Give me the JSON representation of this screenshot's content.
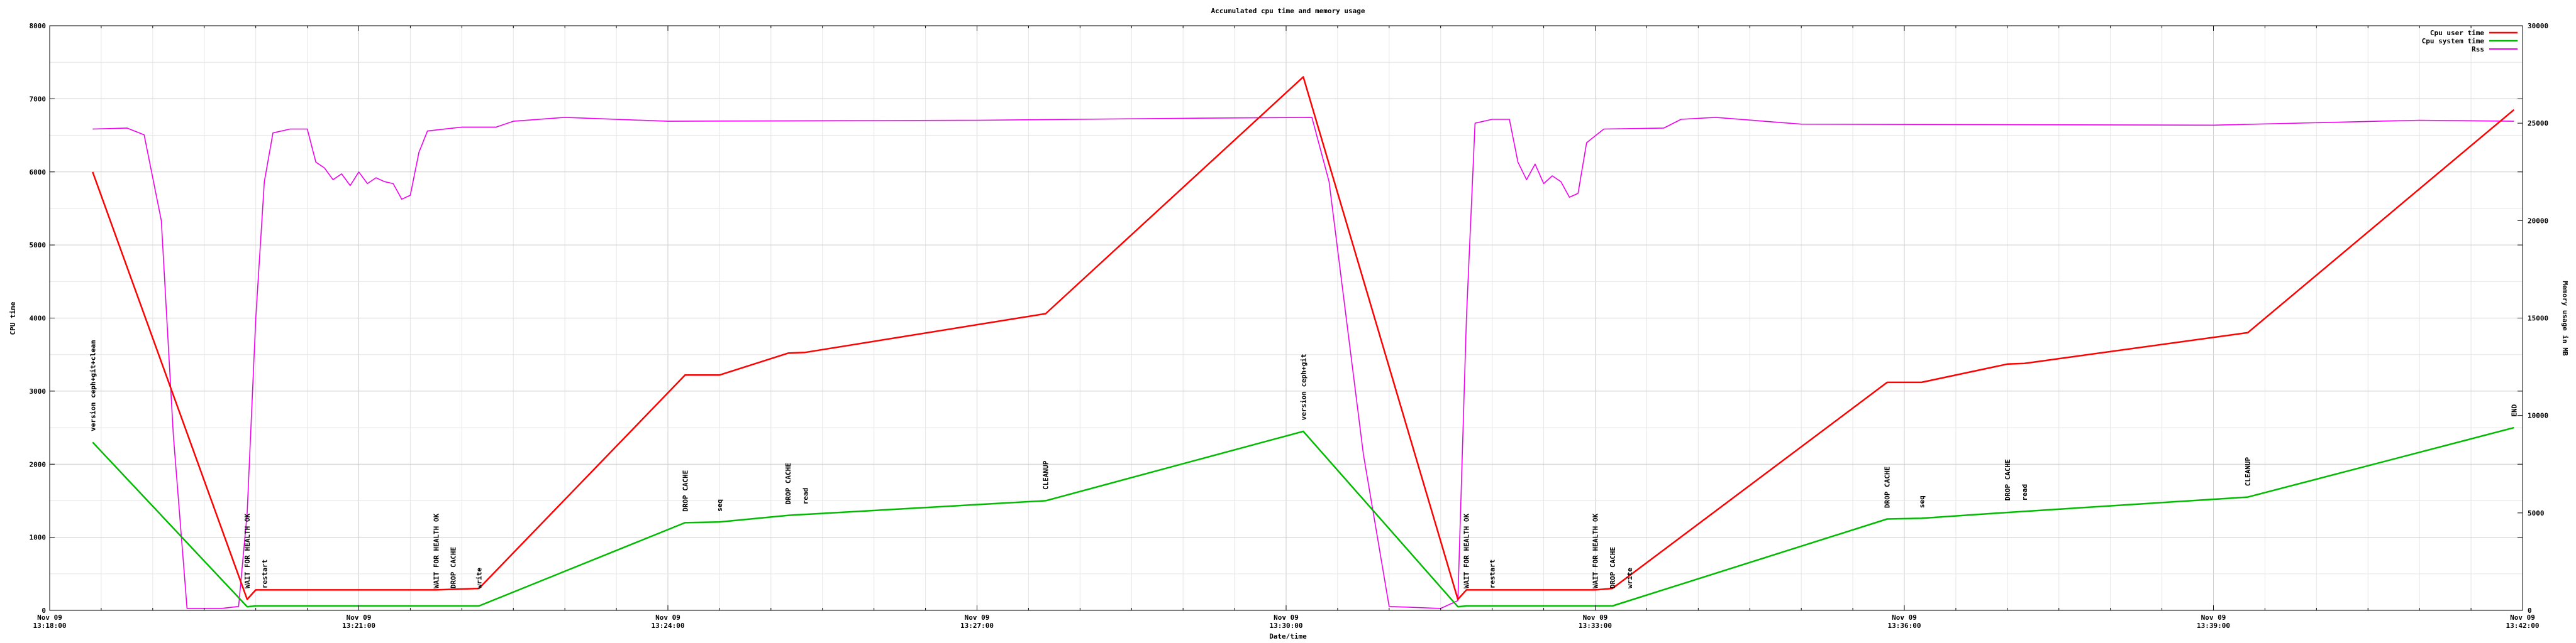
{
  "chart_data": {
    "type": "line",
    "title": "Accumulated cpu time and memory usage",
    "xlabel": "Date/time",
    "ylabel": "CPU time",
    "y2label": "Memory usage in MB",
    "xlim": [
      "13:18:00",
      "13:42:00"
    ],
    "ylim": [
      0,
      8000
    ],
    "y2lim": [
      0,
      30000
    ],
    "grid": true,
    "legend_position": "top-right",
    "x_ticks": [
      {
        "t": "13:18:00",
        "l1": "Nov 09",
        "l2": "13:18:00"
      },
      {
        "t": "13:21:00",
        "l1": "Nov 09",
        "l2": "13:21:00"
      },
      {
        "t": "13:24:00",
        "l1": "Nov 09",
        "l2": "13:24:00"
      },
      {
        "t": "13:27:00",
        "l1": "Nov 09",
        "l2": "13:27:00"
      },
      {
        "t": "13:30:00",
        "l1": "Nov 09",
        "l2": "13:30:00"
      },
      {
        "t": "13:33:00",
        "l1": "Nov 09",
        "l2": "13:33:00"
      },
      {
        "t": "13:36:00",
        "l1": "Nov 09",
        "l2": "13:36:00"
      },
      {
        "t": "13:39:00",
        "l1": "Nov 09",
        "l2": "13:39:00"
      },
      {
        "t": "13:42:00",
        "l1": "Nov 09",
        "l2": "13:42:00"
      }
    ],
    "y_ticks": [
      "0",
      "1000",
      "2000",
      "3000",
      "4000",
      "5000",
      "6000",
      "7000",
      "8000"
    ],
    "y2_ticks": [
      "0",
      "5000",
      "10000",
      "15000",
      "20000",
      "25000",
      "30000"
    ],
    "series": [
      {
        "name": "Cpu user time",
        "color": "#ff0000",
        "axis": "y",
        "points": [
          [
            "13:18:25",
            6000
          ],
          [
            "13:19:55",
            150
          ],
          [
            "13:20:00",
            280
          ],
          [
            "13:20:30",
            280
          ],
          [
            "13:21:45",
            280
          ],
          [
            "13:22:10",
            300
          ],
          [
            "13:24:10",
            3220
          ],
          [
            "13:24:30",
            3220
          ],
          [
            "13:25:10",
            3520
          ],
          [
            "13:25:20",
            3530
          ],
          [
            "13:27:40",
            4060
          ],
          [
            "13:30:10",
            7300
          ],
          [
            "13:31:40",
            150
          ],
          [
            "13:31:45",
            280
          ],
          [
            "13:33:00",
            280
          ],
          [
            "13:33:10",
            300
          ],
          [
            "13:35:50",
            3120
          ],
          [
            "13:36:10",
            3120
          ],
          [
            "13:37:00",
            3370
          ],
          [
            "13:37:10",
            3380
          ],
          [
            "13:39:20",
            3800
          ],
          [
            "13:41:55",
            6850
          ]
        ]
      },
      {
        "name": "Cpu system time",
        "color": "#00bb00",
        "axis": "y",
        "points": [
          [
            "13:18:25",
            2300
          ],
          [
            "13:19:55",
            50
          ],
          [
            "13:20:00",
            60
          ],
          [
            "13:22:10",
            60
          ],
          [
            "13:24:10",
            1200
          ],
          [
            "13:24:30",
            1210
          ],
          [
            "13:25:10",
            1300
          ],
          [
            "13:27:40",
            1500
          ],
          [
            "13:30:10",
            2450
          ],
          [
            "13:31:40",
            50
          ],
          [
            "13:31:45",
            60
          ],
          [
            "13:33:10",
            60
          ],
          [
            "13:35:50",
            1250
          ],
          [
            "13:36:10",
            1260
          ],
          [
            "13:37:00",
            1340
          ],
          [
            "13:39:20",
            1550
          ],
          [
            "13:41:55",
            2500
          ]
        ]
      },
      {
        "name": "Rss",
        "color": "#ee00ee",
        "axis": "y2",
        "points": [
          [
            "13:18:25",
            24700
          ],
          [
            "13:18:45",
            24750
          ],
          [
            "13:18:55",
            24400
          ],
          [
            "13:19:05",
            20000
          ],
          [
            "13:19:12",
            9000
          ],
          [
            "13:19:20",
            100
          ],
          [
            "13:19:40",
            100
          ],
          [
            "13:19:50",
            200
          ],
          [
            "13:19:55",
            5000
          ],
          [
            "13:20:00",
            15000
          ],
          [
            "13:20:05",
            22000
          ],
          [
            "13:20:10",
            24500
          ],
          [
            "13:20:20",
            24700
          ],
          [
            "13:20:30",
            24700
          ],
          [
            "13:20:35",
            23000
          ],
          [
            "13:20:40",
            22700
          ],
          [
            "13:20:45",
            22100
          ],
          [
            "13:20:50",
            22400
          ],
          [
            "13:20:55",
            21800
          ],
          [
            "13:21:00",
            22500
          ],
          [
            "13:21:05",
            21900
          ],
          [
            "13:21:10",
            22200
          ],
          [
            "13:21:15",
            22000
          ],
          [
            "13:21:20",
            21900
          ],
          [
            "13:21:25",
            21100
          ],
          [
            "13:21:30",
            21300
          ],
          [
            "13:21:35",
            23500
          ],
          [
            "13:21:40",
            24600
          ],
          [
            "13:22:00",
            24800
          ],
          [
            "13:22:20",
            24800
          ],
          [
            "13:22:30",
            25100
          ],
          [
            "13:23:00",
            25300
          ],
          [
            "13:24:00",
            25100
          ],
          [
            "13:27:00",
            25150
          ],
          [
            "13:29:00",
            25250
          ],
          [
            "13:30:15",
            25300
          ],
          [
            "13:30:25",
            22000
          ],
          [
            "13:30:35",
            15000
          ],
          [
            "13:30:45",
            8000
          ],
          [
            "13:31:00",
            200
          ],
          [
            "13:31:30",
            100
          ],
          [
            "13:31:40",
            500
          ],
          [
            "13:31:45",
            15000
          ],
          [
            "13:31:50",
            25000
          ],
          [
            "13:32:00",
            25200
          ],
          [
            "13:32:10",
            25200
          ],
          [
            "13:32:15",
            23000
          ],
          [
            "13:32:20",
            22100
          ],
          [
            "13:32:25",
            22900
          ],
          [
            "13:32:30",
            21900
          ],
          [
            "13:32:35",
            22300
          ],
          [
            "13:32:40",
            22000
          ],
          [
            "13:32:45",
            21200
          ],
          [
            "13:32:50",
            21400
          ],
          [
            "13:32:55",
            24000
          ],
          [
            "13:33:05",
            24700
          ],
          [
            "13:33:40",
            24750
          ],
          [
            "13:33:50",
            25200
          ],
          [
            "13:34:10",
            25300
          ],
          [
            "13:35:00",
            24950
          ],
          [
            "13:39:00",
            24900
          ],
          [
            "13:41:00",
            25150
          ],
          [
            "13:41:55",
            25100
          ]
        ]
      }
    ],
    "annotations": [
      {
        "label": "version ceph+git+clean",
        "x": "13:18:25",
        "y": 2450
      },
      {
        "label": "WAIT FOR HEALTH OK",
        "x": "13:19:55",
        "y": 300
      },
      {
        "label": "restart",
        "x": "13:20:05",
        "y": 300
      },
      {
        "label": "WAIT FOR HEALTH OK",
        "x": "13:21:45",
        "y": 300
      },
      {
        "label": "DROP CACHE",
        "x": "13:21:55",
        "y": 300
      },
      {
        "label": "write",
        "x": "13:22:10",
        "y": 300
      },
      {
        "label": "DROP CACHE",
        "x": "13:24:10",
        "y": 1350
      },
      {
        "label": "seq",
        "x": "13:24:30",
        "y": 1350
      },
      {
        "label": "DROP CACHE",
        "x": "13:25:10",
        "y": 1450
      },
      {
        "label": "read",
        "x": "13:25:20",
        "y": 1450
      },
      {
        "label": "CLEANUP",
        "x": "13:27:40",
        "y": 1650
      },
      {
        "label": "version ceph+git",
        "x": "13:30:10",
        "y": 2600
      },
      {
        "label": "WAIT FOR HEALTH OK",
        "x": "13:31:45",
        "y": 300
      },
      {
        "label": "restart",
        "x": "13:32:00",
        "y": 300
      },
      {
        "label": "WAIT FOR HEALTH OK",
        "x": "13:33:00",
        "y": 300
      },
      {
        "label": "DROP CACHE",
        "x": "13:33:10",
        "y": 300
      },
      {
        "label": "write",
        "x": "13:33:20",
        "y": 300
      },
      {
        "label": "DROP CACHE",
        "x": "13:35:50",
        "y": 1400
      },
      {
        "label": "seq",
        "x": "13:36:10",
        "y": 1400
      },
      {
        "label": "DROP CACHE",
        "x": "13:37:00",
        "y": 1500
      },
      {
        "label": "read",
        "x": "13:37:10",
        "y": 1500
      },
      {
        "label": "CLEANUP",
        "x": "13:39:20",
        "y": 1700
      },
      {
        "label": "END",
        "x": "13:41:55",
        "y": 2650
      }
    ]
  }
}
